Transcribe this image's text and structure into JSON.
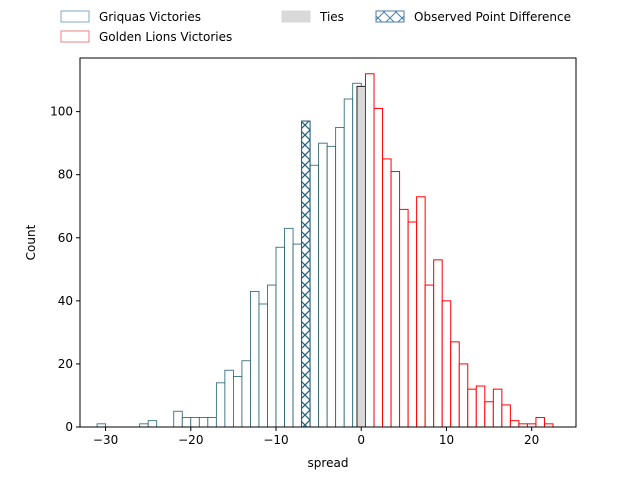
{
  "chart_data": {
    "type": "bar",
    "title": "",
    "xlabel": "spread",
    "ylabel": "Count",
    "xlim": [
      -33,
      25.2
    ],
    "ylim": [
      0,
      117
    ],
    "xticks": [
      -30,
      -20,
      -10,
      0,
      10,
      20
    ],
    "yticks": [
      0,
      20,
      40,
      60,
      80,
      100
    ],
    "bin_width": 1,
    "grid": false,
    "legend_placement": "top-center-outside",
    "observed_point_difference": -7,
    "series": [
      {
        "name": "Griquas Victories",
        "color": "#1f5f6b",
        "bins": [
          [
            -31,
            1
          ],
          [
            -26,
            1
          ],
          [
            -25,
            2
          ],
          [
            -23,
            0
          ],
          [
            -22,
            5
          ],
          [
            -21,
            3
          ],
          [
            -20,
            3
          ],
          [
            -19,
            3
          ],
          [
            -18,
            3
          ],
          [
            -17,
            14
          ],
          [
            -16,
            18
          ],
          [
            -15,
            16
          ],
          [
            -14,
            21
          ],
          [
            -13,
            43
          ],
          [
            -12,
            39
          ],
          [
            -11,
            45
          ],
          [
            -10,
            57
          ],
          [
            -9,
            63
          ],
          [
            -8,
            58
          ],
          [
            -7,
            97
          ],
          [
            -6,
            83
          ],
          [
            -5,
            90
          ],
          [
            -4,
            89
          ],
          [
            -3,
            95
          ],
          [
            -2,
            104
          ],
          [
            -1,
            109
          ]
        ]
      },
      {
        "name": "Ties",
        "color": "#d9d9d9",
        "bins": [
          [
            -0.5,
            108
          ]
        ]
      },
      {
        "name": "Golden Lions Victories",
        "color": "#ff0000",
        "bins": [
          [
            0.5,
            112
          ],
          [
            1.5,
            101
          ],
          [
            2.5,
            85
          ],
          [
            3.5,
            81
          ],
          [
            4.5,
            69
          ],
          [
            5.5,
            65
          ],
          [
            6.5,
            73
          ],
          [
            7.5,
            45
          ],
          [
            8.5,
            53
          ],
          [
            9.5,
            40
          ],
          [
            10.5,
            27
          ],
          [
            11.5,
            20
          ],
          [
            12.5,
            12
          ],
          [
            13.5,
            13
          ],
          [
            14.5,
            8
          ],
          [
            15.5,
            12
          ],
          [
            16.5,
            7
          ],
          [
            17.5,
            2
          ],
          [
            18.5,
            1
          ],
          [
            19.5,
            1
          ],
          [
            20.5,
            3
          ],
          [
            21.5,
            1
          ]
        ]
      }
    ],
    "legend": [
      {
        "label": "Griquas Victories",
        "kind": "griquas"
      },
      {
        "label": "Golden Lions Victories",
        "kind": "lions"
      },
      {
        "label": "Ties",
        "kind": "ties"
      },
      {
        "label": "Observed Point Difference",
        "kind": "observed"
      }
    ]
  }
}
